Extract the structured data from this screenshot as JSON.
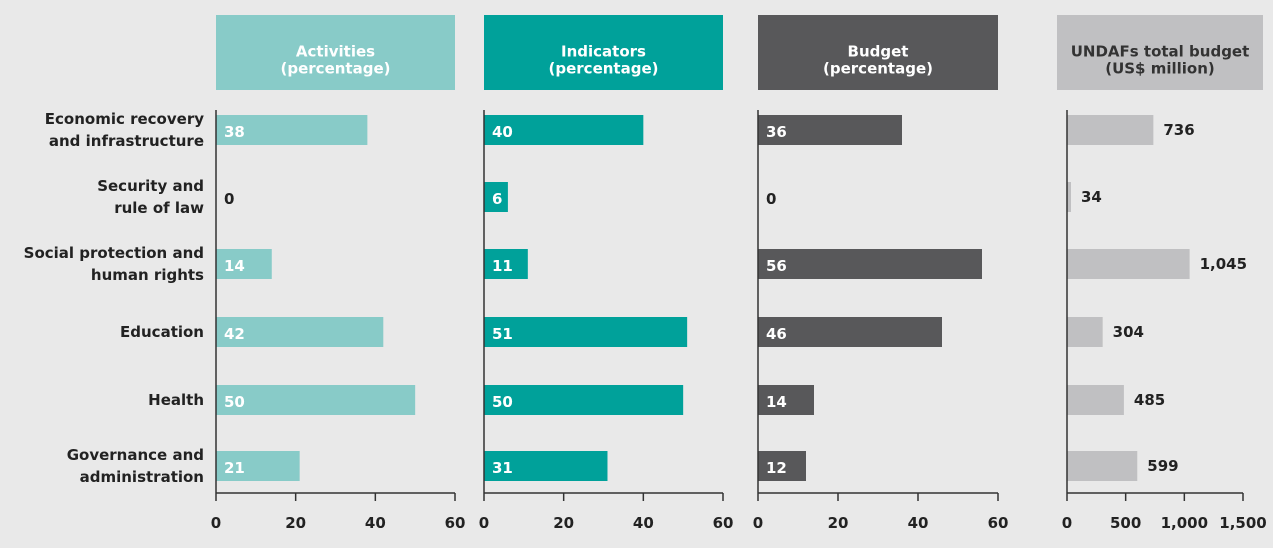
{
  "chart_data": {
    "type": "bar",
    "orientation": "horizontal",
    "categories": [
      "Economic recovery\nand infrastructure",
      "Security and\nrule of law",
      "Social protection and\nhuman rights",
      "Education",
      "Health",
      "Governance and\nadministration"
    ],
    "series": [
      {
        "name": "Activities\n(percentage)",
        "color": "#88cbc8",
        "values": [
          38,
          0,
          14,
          42,
          50,
          21
        ],
        "xlim": [
          0,
          60
        ],
        "xticks": [
          0,
          20,
          40,
          60
        ]
      },
      {
        "name": "Indicators\n(percentage)",
        "color": "#00a19a",
        "values": [
          40,
          6,
          11,
          51,
          50,
          31
        ],
        "xlim": [
          0,
          60
        ],
        "xticks": [
          0,
          20,
          40,
          60
        ]
      },
      {
        "name": "Budget\n(percentage)",
        "color": "#58585a",
        "values": [
          36,
          0,
          56,
          46,
          14,
          12
        ],
        "xlim": [
          0,
          60
        ],
        "xticks": [
          0,
          20,
          40,
          60
        ]
      },
      {
        "name": "UNDAFs total budget\n(US$ million)",
        "color": "#c0c0c2",
        "values": [
          736,
          34,
          1045,
          304,
          485,
          599
        ],
        "value_labels": [
          "736",
          "34",
          "1,045",
          "304",
          "485",
          "599"
        ],
        "xlim": [
          0,
          1500
        ],
        "xticks": [
          0,
          500,
          {
            "value": 1000,
            "label": "1,000"
          },
          {
            "value": 1500,
            "label": "1,500"
          }
        ]
      }
    ]
  }
}
